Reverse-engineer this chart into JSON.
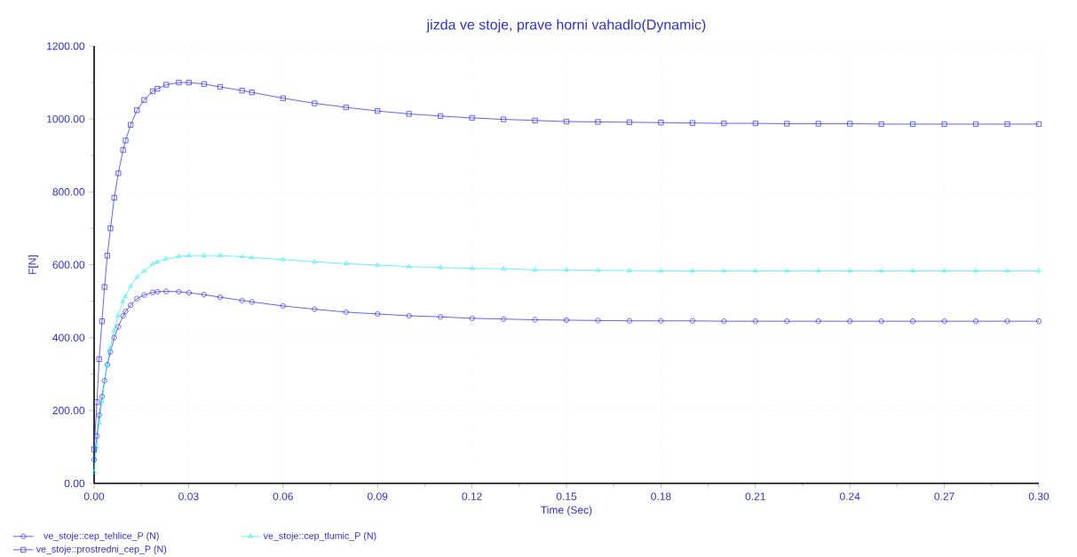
{
  "chart_data": {
    "type": "line",
    "title": "jizda ve stoje, prave horni vahadlo(Dynamic)",
    "xlabel": "Time (Sec)",
    "ylabel": "F[N]",
    "xlim": [
      0,
      0.3
    ],
    "ylim": [
      0,
      1200
    ],
    "xticks": [
      {
        "value": 0,
        "label": "0.00"
      },
      {
        "value": 0.03,
        "label": "0.03"
      },
      {
        "value": 0.06,
        "label": "0.06"
      },
      {
        "value": 0.09,
        "label": "0.09"
      },
      {
        "value": 0.12,
        "label": "0.12"
      },
      {
        "value": 0.15,
        "label": "0.15"
      },
      {
        "value": 0.18,
        "label": "0.18"
      },
      {
        "value": 0.21,
        "label": "0.21"
      },
      {
        "value": 0.24,
        "label": "0.24"
      },
      {
        "value": 0.27,
        "label": "0.27"
      },
      {
        "value": 0.3,
        "label": "0.30"
      }
    ],
    "yticks": [
      {
        "value": 0,
        "label": "0.00"
      },
      {
        "value": 200,
        "label": "200.00"
      },
      {
        "value": 400,
        "label": "400.00"
      },
      {
        "value": 600,
        "label": "600.00"
      },
      {
        "value": 800,
        "label": "800.00"
      },
      {
        "value": 1000,
        "label": "1000.00"
      },
      {
        "value": 1200,
        "label": "1200.00"
      }
    ],
    "grid": true,
    "legend": "bottom",
    "line_style": "solid",
    "series": [
      {
        "name": "ve_stoje::cep_tehlice_P (N)",
        "color": "#3c3cf0",
        "marker": "circle",
        "x": [
          0,
          0.0009,
          0.0016,
          0.0025,
          0.0033,
          0.0042,
          0.0052,
          0.0064,
          0.0077,
          0.0092,
          0.01,
          0.0116,
          0.0136,
          0.0159,
          0.0186,
          0.0201,
          0.0229,
          0.0269,
          0.0301,
          0.0349,
          0.04,
          0.047,
          0.0501,
          0.06,
          0.07,
          0.08,
          0.09,
          0.1,
          0.11,
          0.12,
          0.13,
          0.14,
          0.15,
          0.16,
          0.17,
          0.18,
          0.19,
          0.2,
          0.21,
          0.22,
          0.23,
          0.24,
          0.25,
          0.26,
          0.27,
          0.28,
          0.29,
          0.3
        ],
        "values": [
          65,
          130,
          187,
          238,
          282,
          326,
          361,
          400,
          430,
          460,
          472,
          489,
          507,
          517,
          524,
          526,
          527,
          526,
          523,
          518,
          511,
          502,
          498,
          487,
          478,
          470,
          465,
          460,
          457,
          453,
          451,
          449,
          448,
          447,
          446,
          446,
          446,
          445,
          445,
          445,
          445,
          445,
          445,
          445,
          445,
          445,
          445,
          445
        ]
      },
      {
        "name": "ve_stoje::cep_tlumic_P (N)",
        "color": "#40f0f0",
        "marker": "triangle",
        "x": [
          0,
          0.0008,
          0.0017,
          0.0025,
          0.0041,
          0.005,
          0.0063,
          0.0076,
          0.0091,
          0.0099,
          0.0116,
          0.0137,
          0.0159,
          0.0186,
          0.0201,
          0.0228,
          0.0269,
          0.0301,
          0.0349,
          0.04,
          0.047,
          0.05,
          0.06,
          0.07,
          0.08,
          0.09,
          0.1,
          0.11,
          0.12,
          0.13,
          0.14,
          0.15,
          0.16,
          0.17,
          0.18,
          0.19,
          0.2,
          0.21,
          0.22,
          0.23,
          0.24,
          0.25,
          0.26,
          0.27,
          0.28,
          0.29,
          0.3
        ],
        "values": [
          31,
          101,
          166,
          226,
          324,
          371,
          419,
          460,
          499,
          513,
          541,
          566,
          583,
          602,
          608,
          616,
          623,
          625,
          625,
          625,
          622,
          620,
          614,
          608,
          603,
          599,
          595,
          592,
          590,
          589,
          586,
          586,
          585,
          584,
          583,
          583,
          583,
          583,
          583,
          583,
          583,
          583,
          583,
          583,
          583,
          583,
          583
        ]
      },
      {
        "name": "ve_stoje::prostredni_cep_P (N)",
        "color": "#3c3cf0",
        "marker": "square",
        "x": [
          0,
          0.0009,
          0.0016,
          0.0025,
          0.0033,
          0.0042,
          0.0052,
          0.0064,
          0.0077,
          0.0092,
          0.01,
          0.0116,
          0.0136,
          0.0159,
          0.0186,
          0.0201,
          0.0229,
          0.0269,
          0.0301,
          0.0349,
          0.04,
          0.047,
          0.0501,
          0.06,
          0.07,
          0.08,
          0.09,
          0.1,
          0.11,
          0.12,
          0.13,
          0.14,
          0.15,
          0.16,
          0.17,
          0.18,
          0.19,
          0.2,
          0.21,
          0.22,
          0.23,
          0.24,
          0.25,
          0.26,
          0.27,
          0.28,
          0.29,
          0.3
        ],
        "values": [
          93,
          223,
          341,
          445,
          539,
          625,
          700,
          784,
          851,
          915,
          941,
          984,
          1024,
          1052,
          1076,
          1083,
          1094,
          1100,
          1100,
          1096,
          1088,
          1078,
          1073,
          1057,
          1043,
          1032,
          1022,
          1014,
          1008,
          1003,
          999,
          996,
          993,
          992,
          991,
          990,
          989,
          988,
          988,
          987,
          987,
          987,
          986,
          986,
          986,
          986,
          986,
          986
        ]
      }
    ]
  }
}
